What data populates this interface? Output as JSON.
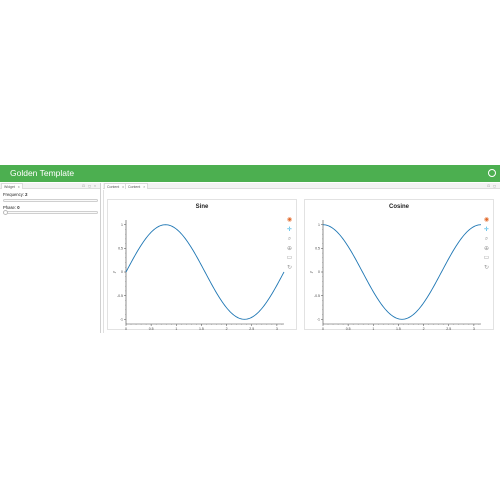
{
  "header": {
    "title": "Golden Template",
    "menu_icon": "circle-icon"
  },
  "sidebar": {
    "tab": {
      "label": "Widget",
      "close": "x"
    },
    "controls": "⊡ ◻ ×",
    "frequency": {
      "label": "Frequency:",
      "value": "2"
    },
    "phase": {
      "label": "Phase:",
      "value": "0"
    }
  },
  "main": {
    "tabs": [
      {
        "label": "Content",
        "close": "x"
      },
      {
        "label": "Content",
        "close": "×"
      }
    ],
    "controls": "⊡ ◻"
  },
  "toolbar_icons": [
    "bokeh-logo-icon",
    "pan-icon",
    "box-zoom-icon",
    "wheel-zoom-icon",
    "save-icon",
    "reset-icon"
  ],
  "colors": {
    "accent": "#4caf50",
    "line": "#1f77b4"
  },
  "chart_data": [
    {
      "type": "line",
      "title": "Sine",
      "xlabel": "x",
      "ylabel": "y",
      "xlim": [
        0,
        3.1416
      ],
      "ylim": [
        -1.1,
        1.1
      ],
      "xticks": [
        "0",
        "0.5",
        "1",
        "1.5",
        "2",
        "2.5",
        "3"
      ],
      "yticks": [
        "1",
        "0.5",
        "0",
        "-0.5",
        "-1"
      ],
      "function": "sin(2x)",
      "series": [
        {
          "x_range": [
            0,
            3.1416
          ],
          "samples": 120
        }
      ]
    },
    {
      "type": "line",
      "title": "Cosine",
      "xlabel": "x",
      "ylabel": "y",
      "xlim": [
        0,
        3.1416
      ],
      "ylim": [
        -1.1,
        1.1
      ],
      "xticks": [
        "0",
        "0.5",
        "1",
        "1.5",
        "2",
        "2.5",
        "3"
      ],
      "yticks": [
        "1",
        "0.5",
        "0",
        "-0.5",
        "-1"
      ],
      "function": "cos(2x)",
      "series": [
        {
          "x_range": [
            0,
            3.1416
          ],
          "samples": 120
        }
      ]
    }
  ]
}
